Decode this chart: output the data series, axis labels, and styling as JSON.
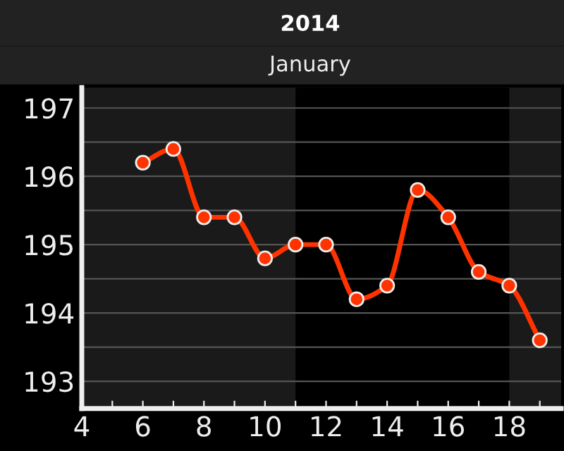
{
  "chart_data": {
    "type": "line",
    "title": "2014",
    "subtitle": "January",
    "x": [
      6,
      7,
      8,
      9,
      10,
      11,
      12,
      13,
      14,
      15,
      16,
      17,
      18,
      19
    ],
    "series": [
      {
        "color": "#ff3300",
        "values": [
          196.2,
          196.4,
          195.4,
          195.4,
          194.8,
          195.0,
          195.0,
          194.2,
          194.4,
          195.8,
          195.4,
          194.6,
          194.4,
          193.6
        ]
      }
    ],
    "xlim": [
      4,
      19.7
    ],
    "ylim": [
      192.6,
      197.3
    ],
    "xticks": [
      4,
      6,
      8,
      10,
      12,
      14,
      16,
      18,
      {
        "value": 5,
        "label": null
      },
      {
        "value": 7,
        "label": null
      },
      {
        "value": 9,
        "label": null
      },
      {
        "value": 11,
        "label": null
      },
      {
        "value": 13,
        "label": null
      },
      {
        "value": 15,
        "label": null
      },
      {
        "value": 17,
        "label": null
      },
      {
        "value": 19,
        "label": null
      }
    ],
    "yticks": [
      193,
      194,
      195,
      196,
      197,
      {
        "value": 193.5,
        "label": null
      },
      {
        "value": 194.5,
        "label": null
      },
      {
        "value": 195.5,
        "label": null
      },
      {
        "value": 196.5,
        "label": null
      }
    ],
    "bands": [
      {
        "axis": "x",
        "from": 11,
        "to": 18,
        "color": "#000000"
      }
    ],
    "grid": "y",
    "marker": "circle",
    "line_style": "solid"
  }
}
